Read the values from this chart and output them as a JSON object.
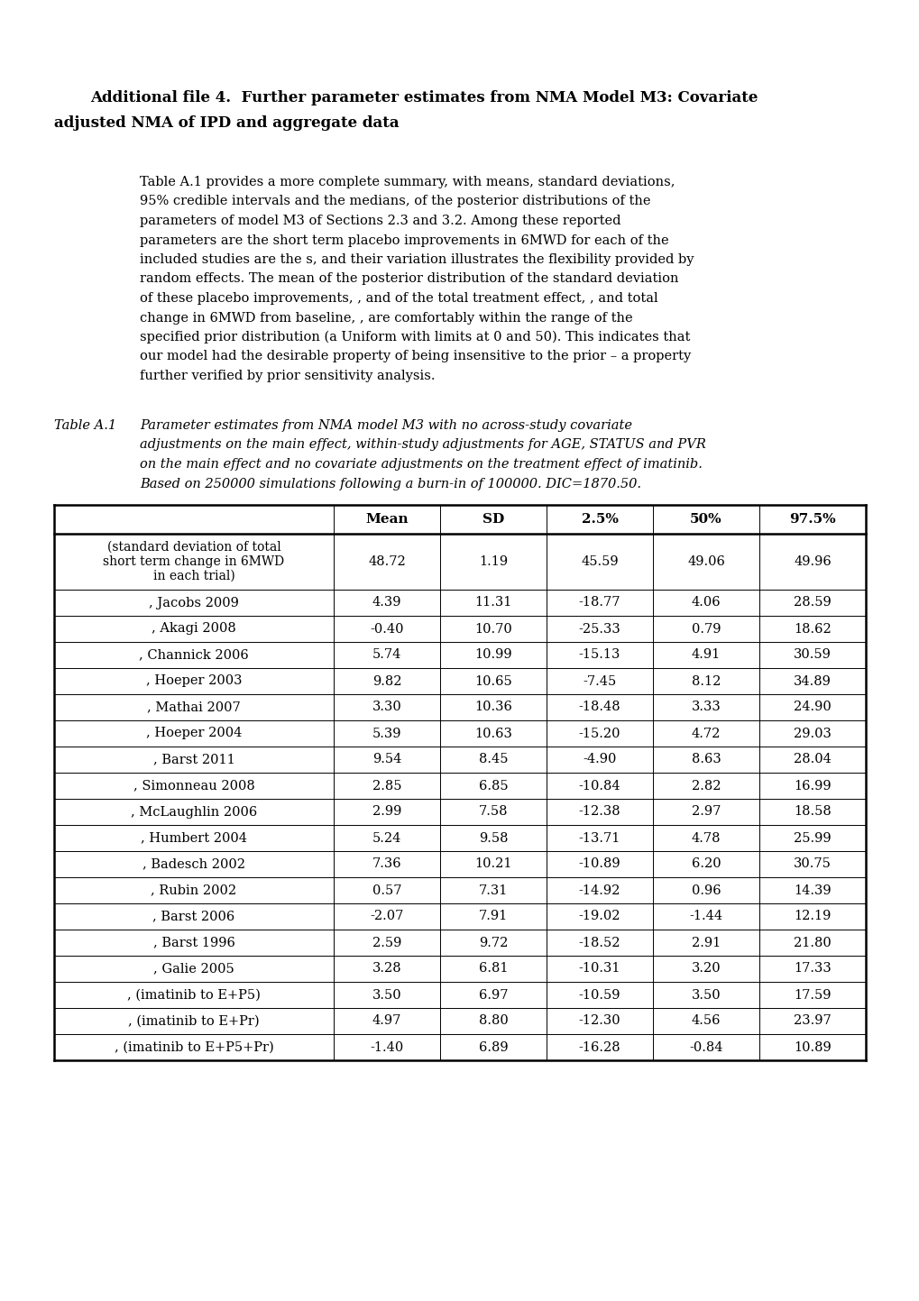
{
  "title_line1": "Additional file 4.  Further parameter estimates from NMA Model M3: Covariate",
  "title_line2": "adjusted NMA of IPD and aggregate data",
  "body_lines": [
    "Table A.1 provides a more complete summary, with means, standard deviations,",
    "95% credible intervals and the medians, of the posterior distributions of the",
    "parameters of model M3 of Sections 2.3 and 3.2. Among these reported",
    "parameters are the short term placebo improvements in 6MWD for each of the",
    "included studies are the s, and their variation illustrates the flexibility provided by",
    "random effects. The mean of the posterior distribution of the standard deviation",
    "of these placebo improvements, , and of the total treatment effect, , and total",
    "change in 6MWD from baseline, , are comfortably within the range of the",
    "specified prior distribution (a Uniform with limits at 0 and 50). This indicates that",
    "our model had the desirable property of being insensitive to the prior – a property",
    "further verified by prior sensitivity analysis."
  ],
  "table_label": "Table A.1",
  "caption_lines": [
    "Parameter estimates from NMA model M3 with no across-study covariate",
    "adjustments on the main effect, within-study adjustments for AGE, STATUS and PVR",
    "on the main effect and no covariate adjustments on the treatment effect of imatinib.",
    "Based on 250000 simulations following a burn-in of 100000. DIC=1870.50."
  ],
  "col_headers": [
    "",
    "Mean",
    "SD",
    "2.5%",
    "50%",
    "97.5%"
  ],
  "rows": [
    [
      "(standard deviation of total\nshort term change in 6MWD\nin each trial)",
      "48.72",
      "1.19",
      "45.59",
      "49.06",
      "49.96"
    ],
    [
      ", Jacobs 2009",
      "4.39",
      "11.31",
      "-18.77",
      "4.06",
      "28.59"
    ],
    [
      ", Akagi 2008",
      "-0.40",
      "10.70",
      "-25.33",
      "0.79",
      "18.62"
    ],
    [
      ", Channick 2006",
      "5.74",
      "10.99",
      "-15.13",
      "4.91",
      "30.59"
    ],
    [
      ", Hoeper 2003",
      "9.82",
      "10.65",
      "-7.45",
      "8.12",
      "34.89"
    ],
    [
      ", Mathai 2007",
      "3.30",
      "10.36",
      "-18.48",
      "3.33",
      "24.90"
    ],
    [
      ", Hoeper 2004",
      "5.39",
      "10.63",
      "-15.20",
      "4.72",
      "29.03"
    ],
    [
      ", Barst 2011",
      "9.54",
      "8.45",
      "-4.90",
      "8.63",
      "28.04"
    ],
    [
      ", Simonneau 2008",
      "2.85",
      "6.85",
      "-10.84",
      "2.82",
      "16.99"
    ],
    [
      ", McLaughlin 2006",
      "2.99",
      "7.58",
      "-12.38",
      "2.97",
      "18.58"
    ],
    [
      ", Humbert 2004",
      "5.24",
      "9.58",
      "-13.71",
      "4.78",
      "25.99"
    ],
    [
      ", Badesch 2002",
      "7.36",
      "10.21",
      "-10.89",
      "6.20",
      "30.75"
    ],
    [
      ", Rubin 2002",
      "0.57",
      "7.31",
      "-14.92",
      "0.96",
      "14.39"
    ],
    [
      ", Barst 2006",
      "-2.07",
      "7.91",
      "-19.02",
      "-1.44",
      "12.19"
    ],
    [
      ", Barst 1996",
      "2.59",
      "9.72",
      "-18.52",
      "2.91",
      "21.80"
    ],
    [
      ", Galie 2005",
      "3.28",
      "6.81",
      "-10.31",
      "3.20",
      "17.33"
    ],
    [
      ", (imatinib to E+P5)",
      "3.50",
      "6.97",
      "-10.59",
      "3.50",
      "17.59"
    ],
    [
      ", (imatinib to E+Pr)",
      "4.97",
      "8.80",
      "-12.30",
      "4.56",
      "23.97"
    ],
    [
      ", (imatinib to E+P5+Pr)",
      "-1.40",
      "6.89",
      "-16.28",
      "-0.84",
      "10.89"
    ]
  ],
  "bg_color": "#ffffff",
  "text_color": "#000000",
  "figw": 10.2,
  "figh": 14.43,
  "dpi": 100
}
